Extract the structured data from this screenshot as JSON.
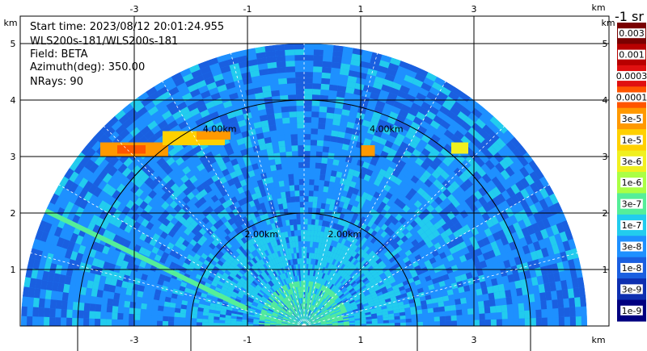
{
  "chart_data": {
    "type": "heatmap",
    "title_lines": [
      "Start time: 2023/08/12 20:01:24.955",
      "WLS200s-181/WLS200s-181",
      "Field: BETA",
      "Azimuth(deg): 350.00",
      "NRays: 90"
    ],
    "x_unit": "km",
    "y_unit": "km",
    "x_ticks": [
      -3,
      -1,
      1,
      3
    ],
    "y_ticks": [
      1,
      2,
      3,
      4,
      5
    ],
    "xlim": [
      -5.5,
      5.5
    ],
    "ylim": [
      0,
      5.5
    ],
    "range_rings_km": [
      2.0,
      4.0
    ],
    "range_ring_labels": [
      "2.00km",
      "4.00km"
    ],
    "max_range_km": 5.0,
    "colorbar": {
      "title": "-1 sr",
      "labels": [
        "0.003",
        "0.001",
        "0.0003",
        "0.0001",
        "3e-5",
        "1e-5",
        "3e-6",
        "1e-6",
        "3e-7",
        "1e-7",
        "3e-8",
        "1e-8",
        "3e-9",
        "1e-9"
      ],
      "colors": [
        "#7a0000",
        "#b80000",
        "#e01010",
        "#ff5500",
        "#ff9900",
        "#ffd000",
        "#f0f020",
        "#aaff44",
        "#55ee99",
        "#22ccee",
        "#1e90ff",
        "#1a5fe0",
        "#0d2fb0",
        "#000080"
      ]
    }
  }
}
